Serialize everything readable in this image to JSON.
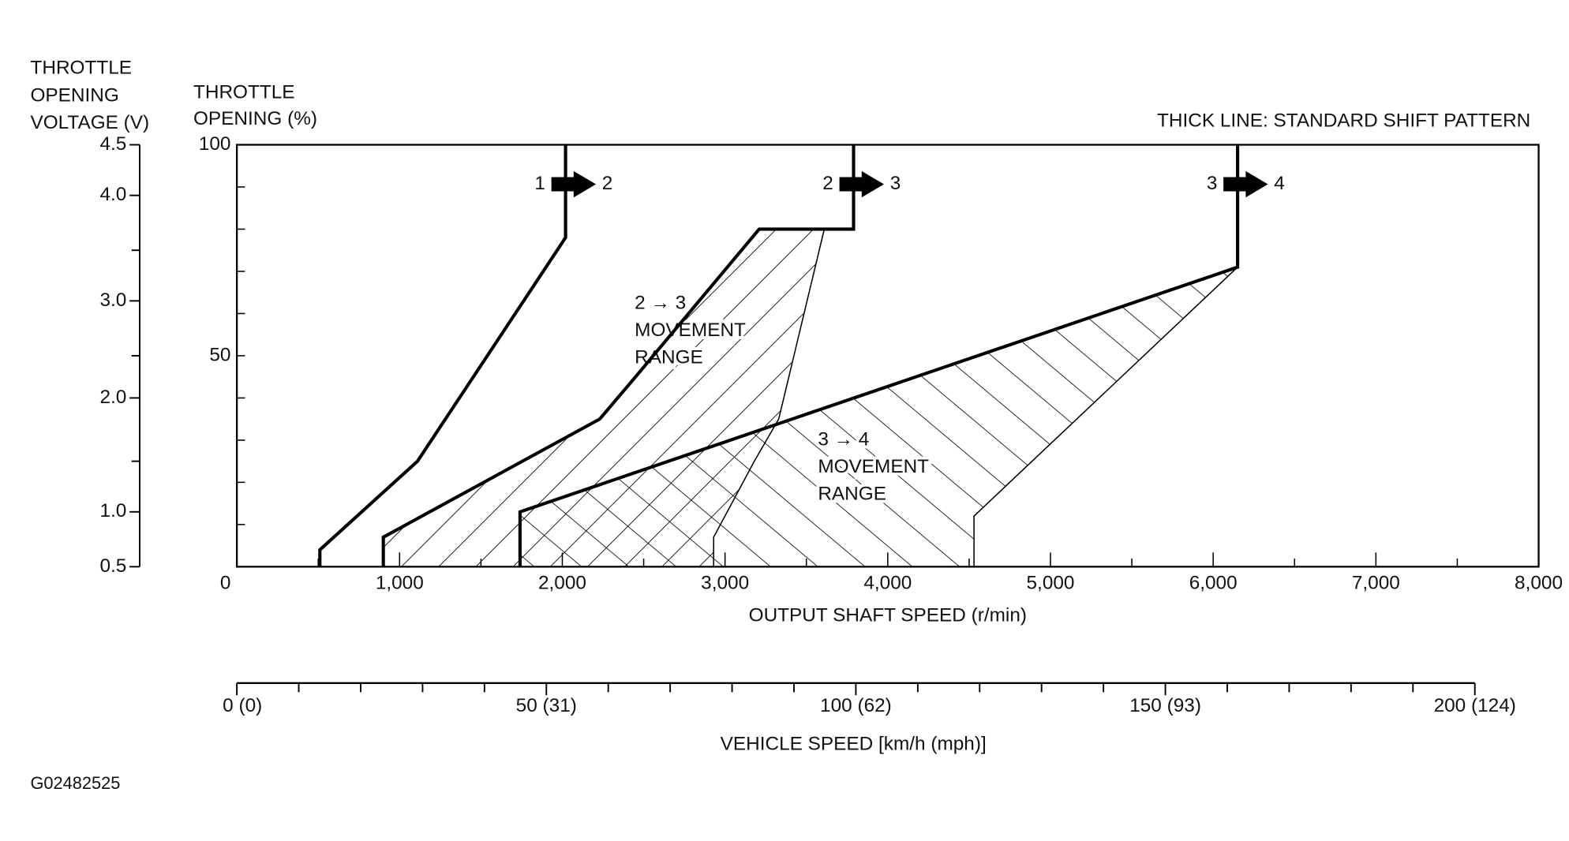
{
  "chart_data": {
    "type": "line",
    "title": "THICK LINE: STANDARD SHIFT PATTERN",
    "x_label": "OUTPUT SHAFT SPEED (r/min)",
    "y_label": [
      "THROTTLE",
      "OPENING (%)"
    ],
    "y2_label": [
      "THROTTLE",
      "OPENING",
      "VOLTAGE (V)"
    ],
    "xlim": [
      0,
      8000
    ],
    "xticks": [
      0,
      {
        "value": 1000,
        "label": "1,000"
      },
      {
        "value": 2000,
        "label": "2,000"
      },
      {
        "value": 3000,
        "label": "3,000"
      },
      {
        "value": 4000,
        "label": "4,000"
      },
      {
        "value": 5000,
        "label": "5,000"
      },
      {
        "value": 6000,
        "label": "6,000"
      },
      {
        "value": 7000,
        "label": "7,000"
      },
      {
        "value": 8000,
        "label": "8,000"
      }
    ],
    "xminor": [
      500,
      1500,
      2500,
      3500,
      4500,
      5500,
      6500,
      7500
    ],
    "ylim": [
      0,
      100
    ],
    "yticks": [
      50,
      100
    ],
    "yminor": [
      10,
      20,
      30,
      40,
      60,
      70,
      80,
      90
    ],
    "y2ticks": [
      {
        "value": 4.5,
        "label": "4.5",
        "throttle": 100
      },
      {
        "value": 4.0,
        "label": "4.0",
        "throttle": 88
      },
      {
        "value": 3.0,
        "label": "3.0",
        "throttle": 63
      },
      {
        "value": 2.0,
        "label": "2.0",
        "throttle": 40
      },
      {
        "value": 1.0,
        "label": "1.0",
        "throttle": 13
      },
      {
        "value": 0.5,
        "label": "0.5",
        "throttle": 0
      }
    ],
    "y2minor": [
      75,
      50,
      25
    ],
    "series": [
      {
        "from": "1",
        "to": "2",
        "color": "#000000",
        "x": [
          510,
          510,
          1110,
          2020,
          2020
        ],
        "y": [
          0,
          4,
          25,
          78,
          100
        ]
      },
      {
        "from": "2",
        "to": "3",
        "color": "#000000",
        "x": [
          900,
          900,
          2230,
          2450,
          3210,
          3790,
          3790
        ],
        "y": [
          0,
          7,
          35,
          45,
          80,
          80,
          100
        ]
      },
      {
        "from": "3",
        "to": "4",
        "color": "#000000",
        "x": [
          1740,
          1740,
          6150,
          6150
        ],
        "y": [
          0,
          13,
          71,
          100
        ]
      }
    ],
    "regions": [
      {
        "label": [
          "2 → 3",
          "MOVEMENT",
          "RANGE"
        ],
        "hatch": "back",
        "x": [
          900,
          2230,
          2450,
          3210,
          3610,
          3330,
          3180,
          2930,
          2930,
          900
        ],
        "y": [
          7,
          35,
          45,
          80,
          80,
          35,
          25,
          7,
          0,
          0
        ]
      },
      {
        "label": [
          "3 → 4",
          "MOVEMENT",
          "RANGE"
        ],
        "hatch": "forward",
        "x": [
          1740,
          6150,
          4530,
          4530,
          1740
        ],
        "y": [
          13,
          71,
          12,
          0,
          0
        ]
      }
    ],
    "vehicle_axis": {
      "label": "VEHICLE SPEED [km/h (mph)]",
      "lim": [
        0,
        200
      ],
      "ticks": [
        {
          "value": 0,
          "label": "0 (0)"
        },
        {
          "value": 50,
          "label": "50 (31)"
        },
        {
          "value": 100,
          "label": "100 (62)"
        },
        {
          "value": 150,
          "label": "150 (93)"
        },
        {
          "value": 200,
          "label": "200 (124)"
        }
      ],
      "minor": [
        10,
        20,
        30,
        40,
        60,
        70,
        80,
        90,
        110,
        120,
        130,
        140,
        160,
        170,
        180,
        190
      ]
    },
    "figure_id": "G02482525"
  }
}
